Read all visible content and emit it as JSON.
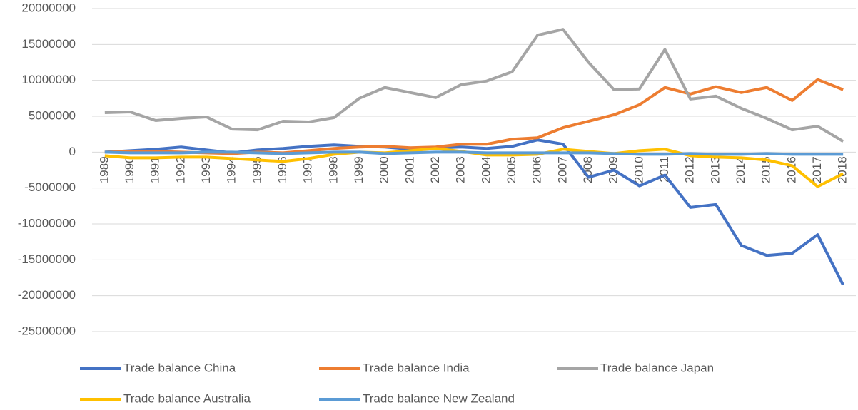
{
  "chart_data": {
    "type": "line",
    "categories": [
      "1989",
      "1990",
      "1991",
      "1992",
      "1993",
      "1994",
      "1995",
      "1996",
      "1997",
      "1998",
      "1999",
      "2000",
      "2001",
      "2002",
      "2003",
      "2004",
      "2005",
      "2006",
      "2007",
      "2008",
      "2009",
      "2010",
      "2011",
      "2012",
      "2013",
      "2014",
      "2015",
      "2016",
      "2017",
      "2018"
    ],
    "series": [
      {
        "name": "Trade balance China",
        "color": "#4472c4",
        "values": [
          0,
          200000,
          400000,
          700000,
          300000,
          -100000,
          300000,
          500000,
          800000,
          1000000,
          800000,
          700000,
          400000,
          600000,
          700000,
          500000,
          800000,
          1700000,
          1100000,
          -3500000,
          -2500000,
          -4700000,
          -3200000,
          -7700000,
          -7300000,
          -13000000,
          -14400000,
          -14100000,
          -11500000,
          -18500000
        ]
      },
      {
        "name": "Trade balance India",
        "color": "#ed7d31",
        "values": [
          0,
          100000,
          100000,
          0,
          -100000,
          -200000,
          0,
          -100000,
          200000,
          500000,
          700000,
          800000,
          600000,
          700000,
          1100000,
          1100000,
          1800000,
          2000000,
          3400000,
          4300000,
          5200000,
          6600000,
          9000000,
          8100000,
          9100000,
          8300000,
          9000000,
          7200000,
          10100000,
          8700000
        ]
      },
      {
        "name": "Trade balance Japan",
        "color": "#a5a5a5",
        "values": [
          5500000,
          5600000,
          4400000,
          4700000,
          4900000,
          3200000,
          3100000,
          4300000,
          4200000,
          4800000,
          7500000,
          9000000,
          8300000,
          7600000,
          9400000,
          9900000,
          11200000,
          16300000,
          17100000,
          12500000,
          8700000,
          8800000,
          14300000,
          7400000,
          7800000,
          6100000,
          4700000,
          3100000,
          3600000,
          1500000
        ]
      },
      {
        "name": "Trade balance Australia",
        "color": "#ffc000",
        "values": [
          -500000,
          -800000,
          -800000,
          -700000,
          -700000,
          -900000,
          -1100000,
          -1300000,
          -900000,
          -300000,
          0,
          -100000,
          200000,
          500000,
          100000,
          -400000,
          -400000,
          -300000,
          400000,
          100000,
          -200000,
          200000,
          400000,
          -500000,
          -700000,
          -800000,
          -1100000,
          -1900000,
          -4800000,
          -3000000
        ]
      },
      {
        "name": "Trade balance New Zealand",
        "color": "#5b9bd5",
        "values": [
          0,
          -100000,
          -100000,
          -100000,
          0,
          0,
          -100000,
          -200000,
          -100000,
          0,
          0,
          -200000,
          -100000,
          0,
          0,
          -100000,
          -100000,
          -100000,
          -100000,
          -100000,
          -200000,
          -300000,
          -300000,
          -200000,
          -300000,
          -300000,
          -200000,
          -300000,
          -300000,
          -300000
        ]
      }
    ],
    "ylim": [
      -25000000,
      20000000
    ],
    "yticks": [
      -25000000,
      -20000000,
      -15000000,
      -10000000,
      -5000000,
      0,
      5000000,
      10000000,
      15000000,
      20000000
    ],
    "grid": true
  }
}
